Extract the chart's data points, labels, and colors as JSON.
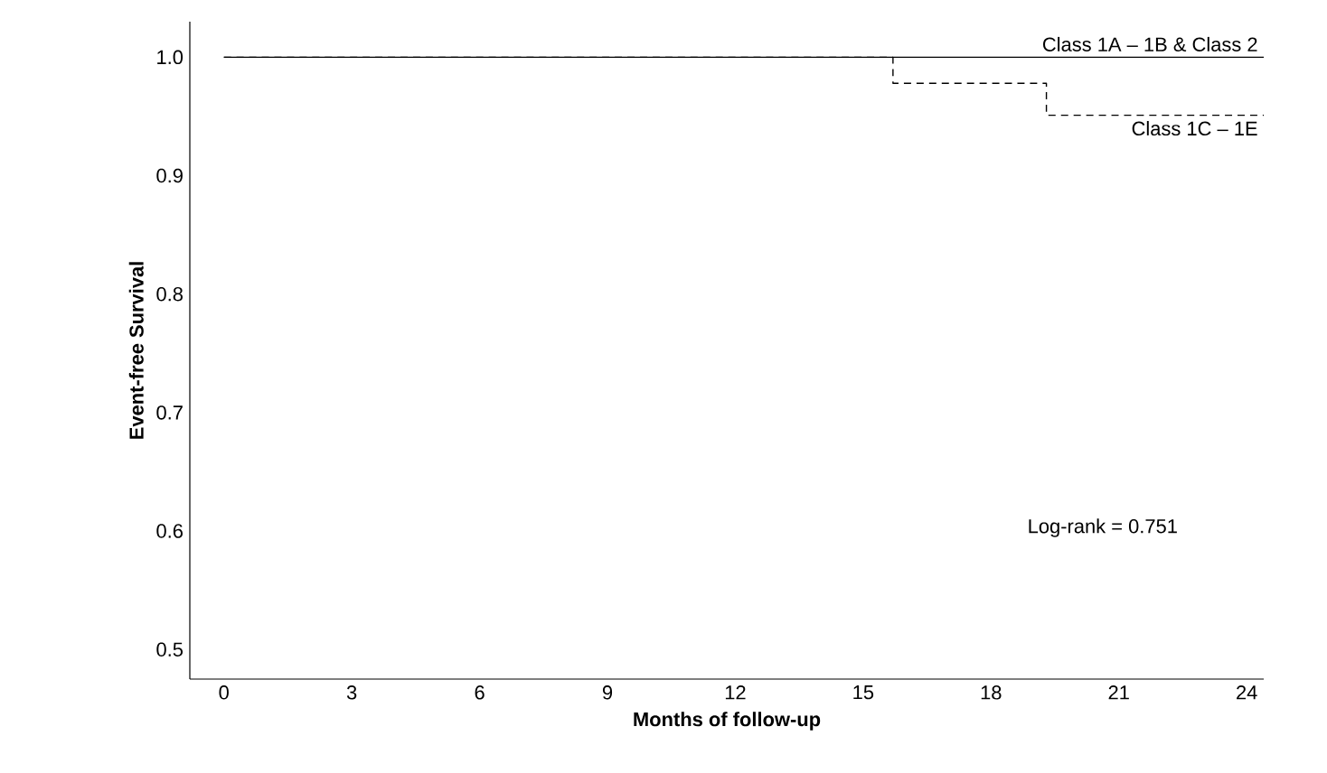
{
  "chart_data": {
    "type": "step",
    "xlabel": "Months of follow-up",
    "ylabel": "Event-free Survival",
    "xlim": [
      -0.8,
      24.4
    ],
    "ylim": [
      0.475,
      1.03
    ],
    "xticks": [
      0,
      3,
      6,
      9,
      12,
      15,
      18,
      21,
      24
    ],
    "yticks": [
      {
        "value": 0.5,
        "label": "0.5"
      },
      {
        "value": 0.6,
        "label": "0.6"
      },
      {
        "value": 0.7,
        "label": "0.7"
      },
      {
        "value": 0.8,
        "label": "0.8"
      },
      {
        "value": 0.9,
        "label": "0.9"
      },
      {
        "value": 1.0,
        "label": "1.0"
      }
    ],
    "series": [
      {
        "name": "Class 1A – 1B & Class 2",
        "color": "#000000",
        "line_style": "solid",
        "x": [
          0,
          24.4
        ],
        "values": [
          1.0,
          1.0
        ]
      },
      {
        "name": "Class 1C – 1E",
        "color": "#000000",
        "line_style": "dashed",
        "x": [
          0,
          15.7,
          19.3,
          24.4
        ],
        "values": [
          1.0,
          0.978,
          0.951,
          0.951
        ]
      }
    ],
    "annotations": [
      "Log-rank = 0.751"
    ],
    "grid": false,
    "marker": "none"
  }
}
